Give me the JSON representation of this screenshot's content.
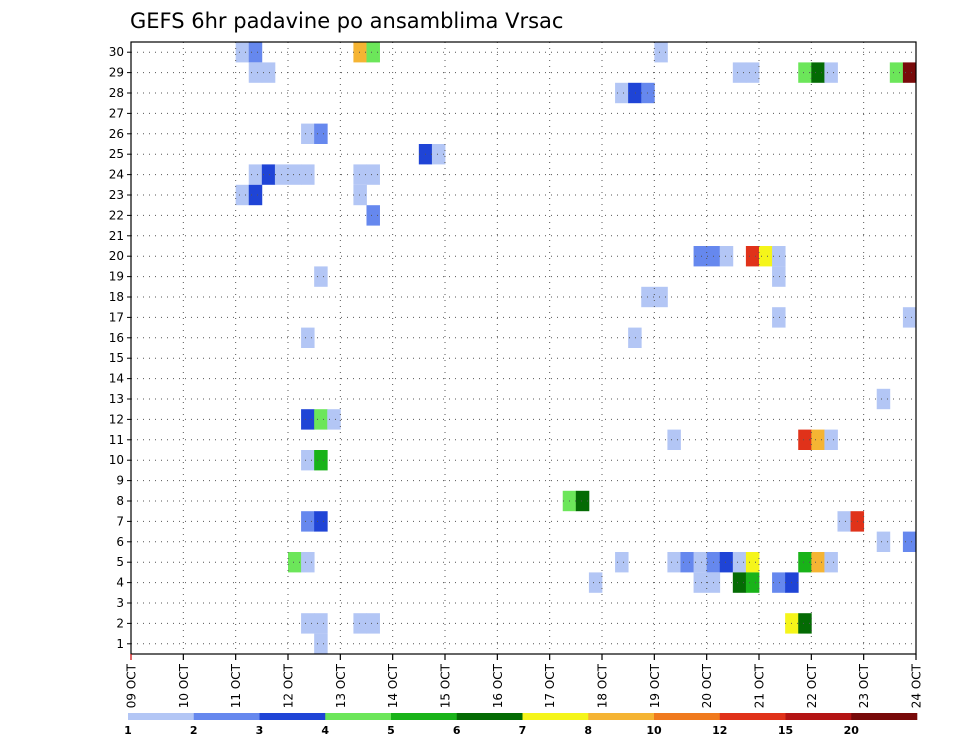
{
  "chart_data": {
    "type": "heatmap",
    "title": "GEFS 6hr padavine po ansamblima Vrsac",
    "xlabel": "",
    "ylabel": "",
    "y_members": [
      1,
      2,
      3,
      4,
      5,
      6,
      7,
      8,
      9,
      10,
      11,
      12,
      13,
      14,
      15,
      16,
      17,
      18,
      19,
      20,
      21,
      22,
      23,
      24,
      25,
      26,
      27,
      28,
      29,
      30
    ],
    "ylim": [
      0,
      30
    ],
    "x_ticks": [
      "09 OCT",
      "10 OCT",
      "11 OCT",
      "12 OCT",
      "13 OCT",
      "14 OCT",
      "15 OCT",
      "16 OCT",
      "17 OCT",
      "18 OCT",
      "19 OCT",
      "20 OCT",
      "21 OCT",
      "22 OCT",
      "23 OCT",
      "24 OCT"
    ],
    "x_unit": "6h steps from 09 OCT 00Z",
    "grid": true,
    "legend_position": "bottom",
    "levels": [
      "1",
      "2",
      "3",
      "4",
      "5",
      "6",
      "7",
      "8",
      "10",
      "12",
      "15",
      "20"
    ],
    "colors": [
      "#b3c6f5",
      "#6688ee",
      "#1f44d6",
      "#6ce65a",
      "#19b319",
      "#046b04",
      "#f5f51a",
      "#f5b433",
      "#f07a1e",
      "#e0321a",
      "#b41414",
      "#780a0a"
    ],
    "cells": [
      {
        "member": 30,
        "step": 8,
        "class": 1
      },
      {
        "member": 30,
        "step": 9,
        "class": 2
      },
      {
        "member": 30,
        "step": 17,
        "class": 8
      },
      {
        "member": 30,
        "step": 18,
        "class": 4
      },
      {
        "member": 30,
        "step": 40,
        "class": 1
      },
      {
        "member": 29,
        "step": 9,
        "class": 1
      },
      {
        "member": 29,
        "step": 10,
        "class": 1
      },
      {
        "member": 29,
        "step": 46,
        "class": 1
      },
      {
        "member": 29,
        "step": 47,
        "class": 1
      },
      {
        "member": 29,
        "step": 51,
        "class": 4
      },
      {
        "member": 29,
        "step": 52,
        "class": 6
      },
      {
        "member": 29,
        "step": 53,
        "class": 1
      },
      {
        "member": 29,
        "step": 58,
        "class": 4
      },
      {
        "member": 29,
        "step": 59,
        "class": 12
      },
      {
        "member": 28,
        "step": 37,
        "class": 1
      },
      {
        "member": 28,
        "step": 38,
        "class": 3
      },
      {
        "member": 28,
        "step": 39,
        "class": 2
      },
      {
        "member": 26,
        "step": 13,
        "class": 1
      },
      {
        "member": 26,
        "step": 14,
        "class": 2
      },
      {
        "member": 25,
        "step": 22,
        "class": 3
      },
      {
        "member": 25,
        "step": 23,
        "class": 1
      },
      {
        "member": 24,
        "step": 9,
        "class": 1
      },
      {
        "member": 24,
        "step": 10,
        "class": 3
      },
      {
        "member": 24,
        "step": 11,
        "class": 1
      },
      {
        "member": 24,
        "step": 12,
        "class": 1
      },
      {
        "member": 24,
        "step": 13,
        "class": 1
      },
      {
        "member": 24,
        "step": 17,
        "class": 1
      },
      {
        "member": 24,
        "step": 18,
        "class": 1
      },
      {
        "member": 23,
        "step": 8,
        "class": 1
      },
      {
        "member": 23,
        "step": 9,
        "class": 3
      },
      {
        "member": 23,
        "step": 17,
        "class": 1
      },
      {
        "member": 22,
        "step": 18,
        "class": 2
      },
      {
        "member": 20,
        "step": 43,
        "class": 2
      },
      {
        "member": 20,
        "step": 44,
        "class": 2
      },
      {
        "member": 20,
        "step": 45,
        "class": 1
      },
      {
        "member": 20,
        "step": 47,
        "class": 10
      },
      {
        "member": 20,
        "step": 48,
        "class": 7
      },
      {
        "member": 20,
        "step": 49,
        "class": 1
      },
      {
        "member": 19,
        "step": 14,
        "class": 1
      },
      {
        "member": 19,
        "step": 49,
        "class": 1
      },
      {
        "member": 18,
        "step": 39,
        "class": 1
      },
      {
        "member": 18,
        "step": 40,
        "class": 1
      },
      {
        "member": 17,
        "step": 49,
        "class": 1
      },
      {
        "member": 17,
        "step": 59,
        "class": 1
      },
      {
        "member": 16,
        "step": 13,
        "class": 1
      },
      {
        "member": 16,
        "step": 38,
        "class": 1
      },
      {
        "member": 13,
        "step": 57,
        "class": 1
      },
      {
        "member": 12,
        "step": 13,
        "class": 3
      },
      {
        "member": 12,
        "step": 14,
        "class": 4
      },
      {
        "member": 12,
        "step": 15,
        "class": 1
      },
      {
        "member": 11,
        "step": 41,
        "class": 1
      },
      {
        "member": 11,
        "step": 51,
        "class": 10
      },
      {
        "member": 11,
        "step": 52,
        "class": 8
      },
      {
        "member": 11,
        "step": 53,
        "class": 1
      },
      {
        "member": 10,
        "step": 13,
        "class": 1
      },
      {
        "member": 10,
        "step": 14,
        "class": 5
      },
      {
        "member": 8,
        "step": 33,
        "class": 4
      },
      {
        "member": 8,
        "step": 34,
        "class": 6
      },
      {
        "member": 7,
        "step": 13,
        "class": 2
      },
      {
        "member": 7,
        "step": 14,
        "class": 3
      },
      {
        "member": 7,
        "step": 54,
        "class": 1
      },
      {
        "member": 7,
        "step": 55,
        "class": 10
      },
      {
        "member": 6,
        "step": 57,
        "class": 1
      },
      {
        "member": 6,
        "step": 59,
        "class": 2
      },
      {
        "member": 5,
        "step": 12,
        "class": 4
      },
      {
        "member": 5,
        "step": 13,
        "class": 1
      },
      {
        "member": 5,
        "step": 37,
        "class": 1
      },
      {
        "member": 5,
        "step": 41,
        "class": 1
      },
      {
        "member": 5,
        "step": 42,
        "class": 2
      },
      {
        "member": 5,
        "step": 43,
        "class": 1
      },
      {
        "member": 5,
        "step": 44,
        "class": 2
      },
      {
        "member": 5,
        "step": 45,
        "class": 3
      },
      {
        "member": 5,
        "step": 46,
        "class": 1
      },
      {
        "member": 5,
        "step": 47,
        "class": 7
      },
      {
        "member": 5,
        "step": 51,
        "class": 5
      },
      {
        "member": 5,
        "step": 52,
        "class": 8
      },
      {
        "member": 5,
        "step": 53,
        "class": 1
      },
      {
        "member": 4,
        "step": 35,
        "class": 1
      },
      {
        "member": 4,
        "step": 43,
        "class": 1
      },
      {
        "member": 4,
        "step": 44,
        "class": 1
      },
      {
        "member": 4,
        "step": 46,
        "class": 6
      },
      {
        "member": 4,
        "step": 47,
        "class": 5
      },
      {
        "member": 4,
        "step": 49,
        "class": 2
      },
      {
        "member": 4,
        "step": 50,
        "class": 3
      },
      {
        "member": 2,
        "step": 13,
        "class": 1
      },
      {
        "member": 2,
        "step": 14,
        "class": 1
      },
      {
        "member": 2,
        "step": 17,
        "class": 1
      },
      {
        "member": 2,
        "step": 18,
        "class": 1
      },
      {
        "member": 2,
        "step": 50,
        "class": 7
      },
      {
        "member": 2,
        "step": 51,
        "class": 6
      },
      {
        "member": 1,
        "step": 14,
        "class": 1
      }
    ]
  }
}
